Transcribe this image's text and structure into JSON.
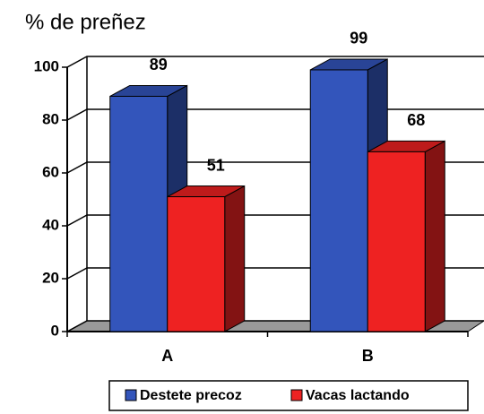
{
  "chart_data": {
    "type": "bar3d",
    "title": "% de preñez",
    "categories": [
      "A",
      "B"
    ],
    "series": [
      {
        "name": "Destete precoz",
        "color": "#3355bb",
        "values": [
          89,
          99
        ]
      },
      {
        "name": "Vacas lactando",
        "color": "#ee2222",
        "values": [
          51,
          68
        ]
      }
    ],
    "ylim": [
      0,
      100
    ],
    "yticks": [
      0,
      20,
      40,
      60,
      80,
      100
    ],
    "grid": true,
    "legend": "bottom"
  }
}
